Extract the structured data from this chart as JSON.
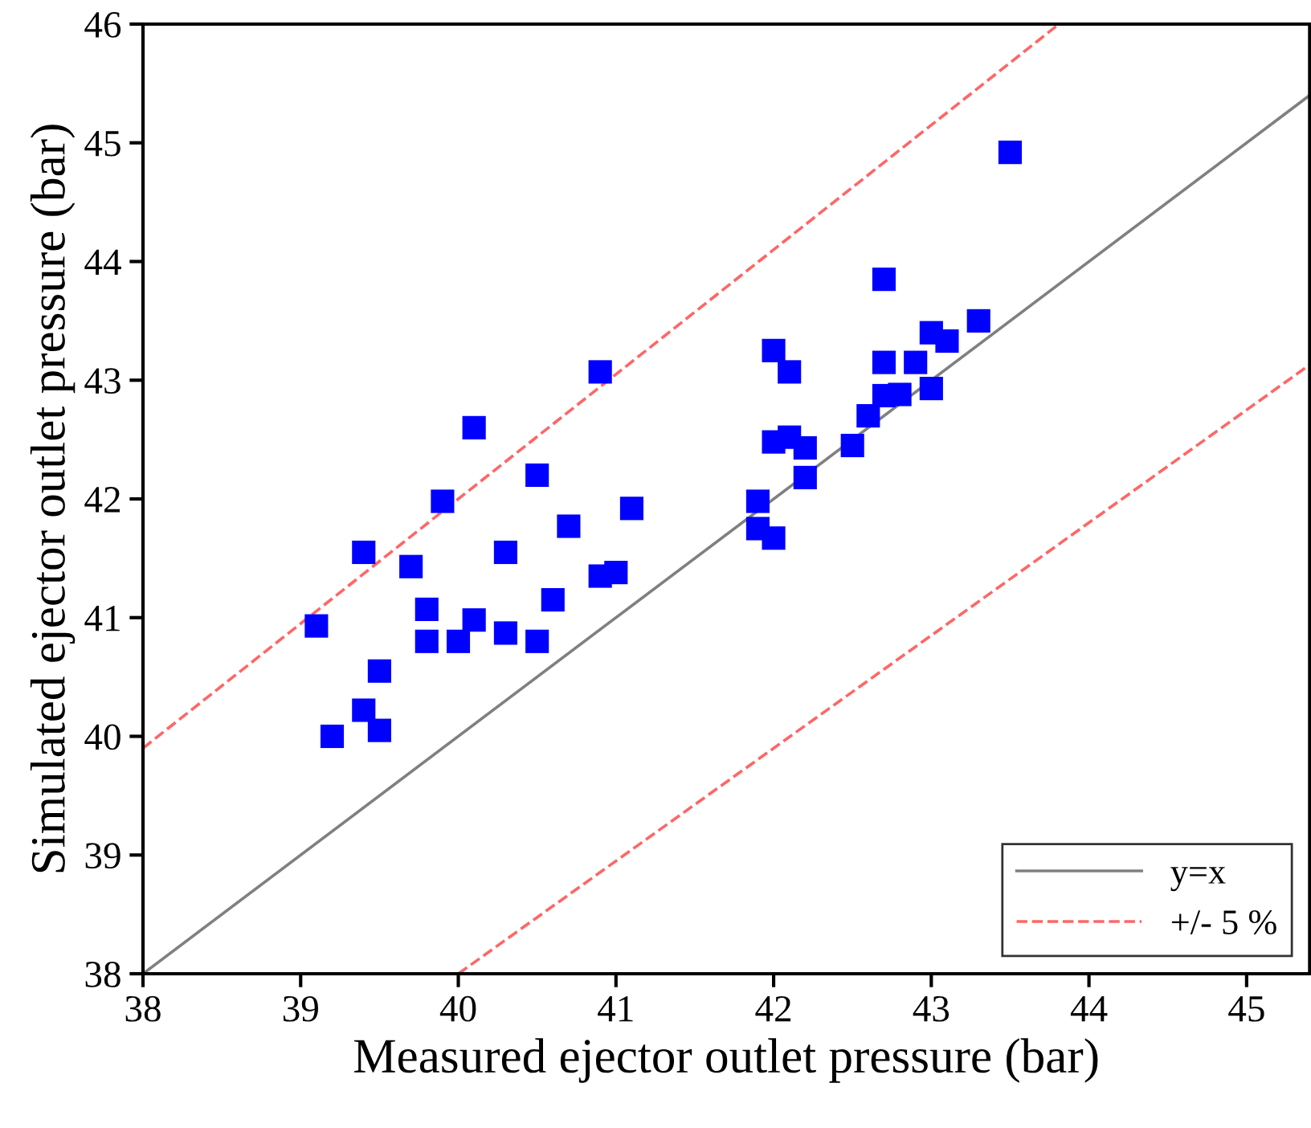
{
  "chart_data": {
    "type": "scatter",
    "xlabel": "Measured ejector outlet pressure (bar)",
    "ylabel": "Simulated ejector outlet pressure (bar)",
    "xlim": [
      38,
      45.4
    ],
    "ylim": [
      38,
      46
    ],
    "xticks": [
      38,
      39,
      40,
      41,
      42,
      43,
      44,
      45
    ],
    "yticks": [
      38,
      39,
      40,
      41,
      42,
      43,
      44,
      45,
      46
    ],
    "grid": false,
    "legend": "bottom right",
    "series": [
      {
        "color": "#0000ff",
        "marker": "square",
        "x": [
          39.1,
          39.2,
          39.4,
          39.4,
          39.5,
          39.5,
          39.7,
          39.8,
          39.8,
          39.9,
          40.0,
          40.1,
          40.1,
          40.3,
          40.3,
          40.5,
          40.5,
          40.6,
          40.7,
          40.9,
          40.9,
          41.0,
          41.1,
          41.9,
          41.9,
          42.0,
          42.0,
          42.0,
          42.1,
          42.1,
          42.2,
          42.2,
          42.5,
          42.6,
          42.7,
          42.7,
          42.7,
          42.8,
          42.9,
          43.0,
          43.0,
          43.1,
          43.3,
          43.5
        ],
        "values": [
          40.93,
          40.0,
          40.22,
          41.55,
          40.55,
          40.05,
          41.43,
          41.07,
          40.8,
          41.98,
          40.8,
          40.98,
          42.6,
          40.87,
          41.55,
          42.2,
          40.8,
          41.15,
          41.77,
          43.07,
          41.35,
          41.38,
          41.92,
          41.98,
          41.75,
          43.25,
          42.48,
          41.67,
          43.07,
          42.52,
          42.43,
          42.18,
          42.45,
          42.7,
          43.85,
          43.15,
          42.87,
          42.88,
          43.15,
          43.4,
          42.93,
          43.33,
          43.5,
          44.92
        ]
      },
      {
        "type": "line",
        "name": "y=x",
        "color": "#808080",
        "line_style": "solid",
        "x": [
          38,
          45.4
        ],
        "values": [
          38,
          45.4
        ]
      },
      {
        "type": "line",
        "name": "+/- 5 %",
        "color": "#ff6666",
        "line_style": "dashed",
        "x": [
          38,
          43.81
        ],
        "values": [
          39.9,
          46
        ]
      },
      {
        "type": "line",
        "color": "#ff6666",
        "line_style": "dashed",
        "x": [
          40,
          45.4
        ],
        "values": [
          38,
          43.13
        ]
      }
    ]
  }
}
